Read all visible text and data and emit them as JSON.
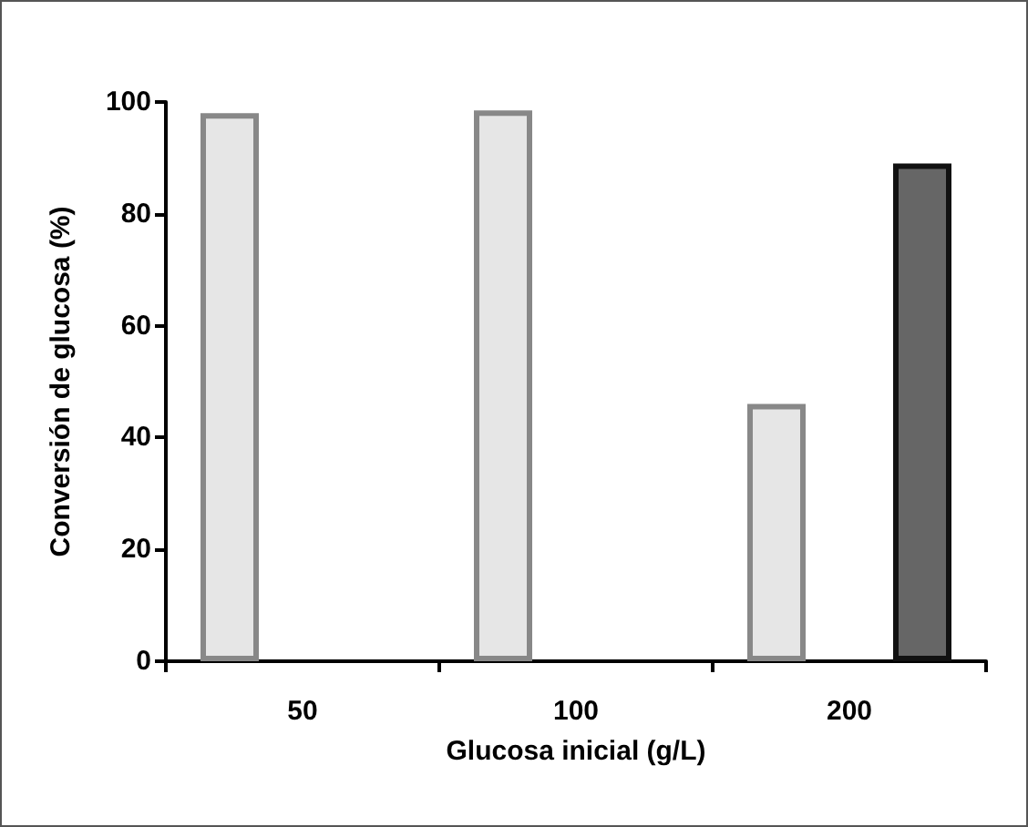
{
  "chart_data": {
    "type": "bar",
    "xlabel": "Glucosa inicial (g/L)",
    "ylabel": "Conversión de glucosa (%)",
    "categories": [
      "50",
      "100",
      "200"
    ],
    "series": [
      {
        "color": "#e6e6e6",
        "values": [
          98,
          98.5,
          46
        ]
      },
      {
        "color": "#666666",
        "values": [
          null,
          null,
          89
        ]
      }
    ],
    "ylim": [
      0,
      100
    ],
    "yticks": [
      0,
      20,
      40,
      60,
      80,
      100
    ],
    "grid": false
  }
}
